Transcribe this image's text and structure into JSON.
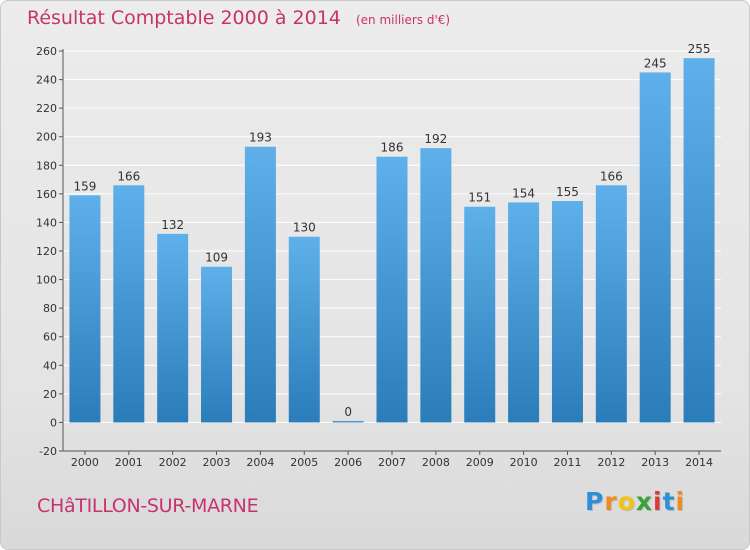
{
  "header": {
    "title": "Résultat Comptable 2000 à 2014",
    "subtitle": "(en milliers d'€)"
  },
  "footer": {
    "town": "CHâTILLON-SUR-MARNE",
    "logo_letters": [
      {
        "char": "P",
        "color": "#2f8fd6"
      },
      {
        "char": "r",
        "color": "#f08a24"
      },
      {
        "char": "o",
        "color": "#f0c419"
      },
      {
        "char": "x",
        "color": "#3aa23a"
      },
      {
        "char": "i",
        "color": "#d93a3a"
      },
      {
        "char": "t",
        "color": "#2f8fd6"
      },
      {
        "char": "i",
        "color": "#f08a24"
      }
    ]
  },
  "colors": {
    "bar_light": "#5fb0ea",
    "bar_dark": "#2a7db9",
    "title": "#c8336e",
    "grid": "#ffffff"
  },
  "chart_data": {
    "type": "bar",
    "title": "Résultat Comptable 2000 à 2014",
    "subtitle": "(en milliers d'€)",
    "xlabel": "",
    "ylabel": "",
    "categories": [
      "2000",
      "2001",
      "2002",
      "2003",
      "2004",
      "2005",
      "2006",
      "2007",
      "2008",
      "2009",
      "2010",
      "2011",
      "2012",
      "2013",
      "2014"
    ],
    "values": [
      159,
      166,
      132,
      109,
      193,
      130,
      0,
      186,
      192,
      151,
      154,
      155,
      166,
      245,
      255
    ],
    "ylim": [
      -20,
      260
    ],
    "yticks": [
      -20,
      0,
      20,
      40,
      60,
      80,
      100,
      120,
      140,
      160,
      180,
      200,
      220,
      240,
      260
    ],
    "grid": true,
    "data_labels": true
  }
}
